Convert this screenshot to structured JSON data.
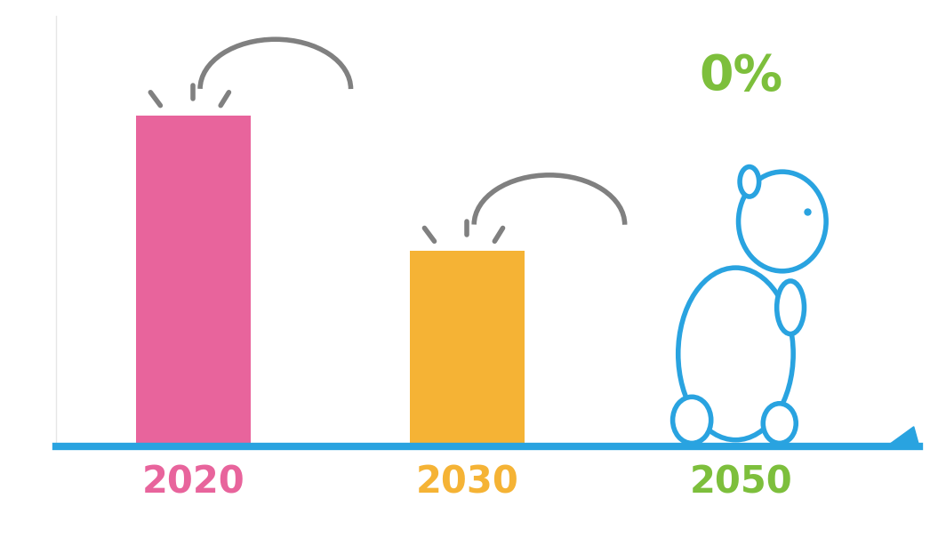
{
  "chart_data": {
    "type": "bar",
    "categories": [
      "2020",
      "2030",
      "2050"
    ],
    "values": [
      100,
      59,
      0
    ],
    "value_labels": [
      null,
      null,
      "0%"
    ],
    "colors": [
      "#e8649c",
      "#f5b335",
      "#7dbf3c"
    ],
    "ylim": [
      0,
      130
    ],
    "tick_labels": "x"
  }
}
